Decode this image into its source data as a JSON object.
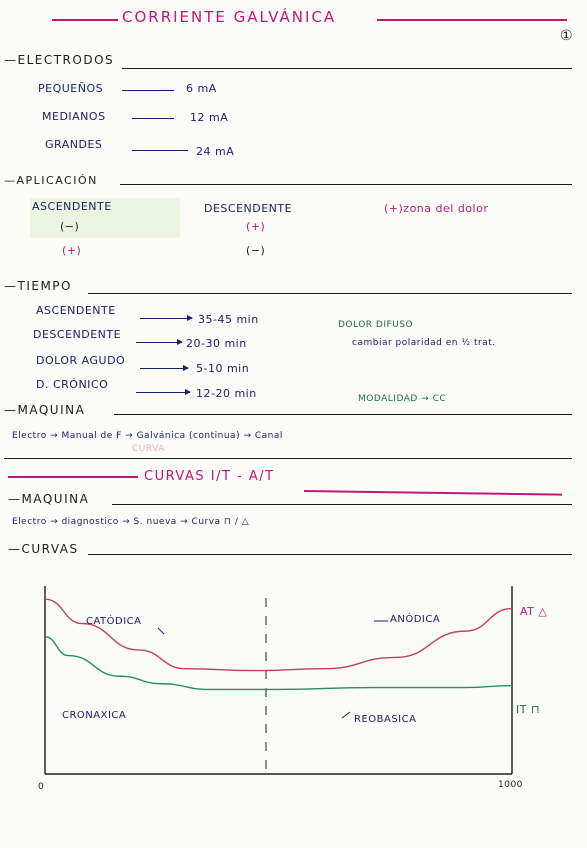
{
  "title": "CORRIENTE GALVÁNICA",
  "page_mark": "①",
  "electrodos": {
    "heading": "ELECTRODOS",
    "rows": [
      {
        "label": "PEQUEÑOS",
        "value": "6 mA"
      },
      {
        "label": "MEDIANOS",
        "value": "12 mA"
      },
      {
        "label": "GRANDES",
        "value": "24 mA"
      }
    ]
  },
  "aplicacion": {
    "heading": "APLICACIÓN",
    "ascendente": {
      "label": "ASCENDENTE",
      "sign1": "(−)",
      "sign2": "(+)"
    },
    "descendente": {
      "label": "DESCENDENTE",
      "sign1": "(+)",
      "sign2": "(−)"
    },
    "zona": "(+)zona del dolor"
  },
  "tiempo": {
    "heading": "TIEMPO",
    "rows": [
      {
        "label": "ASCENDENTE",
        "value": "35-45 min"
      },
      {
        "label": "DESCENDENTE",
        "value": "20-30 min"
      },
      {
        "label": "DOLOR AGUDO",
        "value": "5-10 min"
      },
      {
        "label": "D. CRÓNICO",
        "value": "12-20 min"
      }
    ],
    "dolor_difuso": "DOLOR DIFUSO",
    "dolor_difuso_note": "cambiar polaridad en ½ trat.",
    "modalidad": "MODALIDAD → CC"
  },
  "maquina1": {
    "heading": "MAQUINA",
    "text": "Electro → Manual de F → Galvánica (continua) → Canal",
    "pink_note": "CURVA"
  },
  "curvas_title": "CURVAS I/T - A/T",
  "maquina2": {
    "heading": "MAQUINA",
    "text": "Electro → diagnostico → S. nueva → Curva ⊓ / △"
  },
  "curvas_heading": "CURVAS",
  "chart_data": {
    "type": "line",
    "x_start_label": "0",
    "x_end_label": "1000",
    "series": [
      {
        "name": "AT △",
        "color": "#c23e63",
        "points": [
          [
            0,
            0.93
          ],
          [
            0.08,
            0.8
          ],
          [
            0.2,
            0.66
          ],
          [
            0.3,
            0.56
          ],
          [
            0.45,
            0.55
          ],
          [
            0.6,
            0.56
          ],
          [
            0.75,
            0.62
          ],
          [
            0.9,
            0.76
          ],
          [
            1.0,
            0.88
          ]
        ]
      },
      {
        "name": "IT ⊓",
        "color": "#2a8a6a",
        "points": [
          [
            0,
            0.73
          ],
          [
            0.05,
            0.63
          ],
          [
            0.16,
            0.52
          ],
          [
            0.25,
            0.48
          ],
          [
            0.35,
            0.45
          ],
          [
            0.5,
            0.45
          ],
          [
            0.7,
            0.46
          ],
          [
            0.9,
            0.46
          ],
          [
            1.0,
            0.47
          ]
        ]
      }
    ],
    "annotations": {
      "catodica": "CATÓDICA",
      "anodica": "ANÓDICA",
      "cronaxica": "CRONAXICA",
      "reobasica": "REOBASICA"
    },
    "colors": {
      "at": "#c23e63",
      "it": "#2a8a6a"
    }
  }
}
